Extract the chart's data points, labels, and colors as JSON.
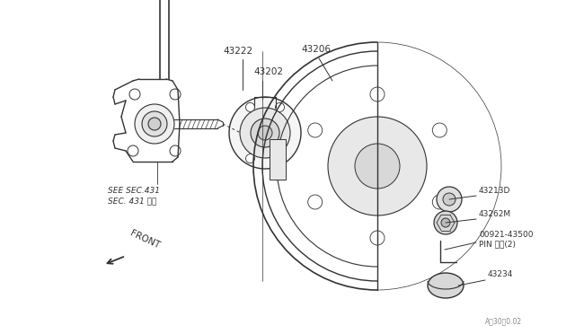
{
  "bg_color": "#ffffff",
  "line_color": "#333333",
  "text_color": "#333333",
  "watermark": "A・30・0.02",
  "see_sec_text1": "SEE SEC.431",
  "see_sec_text2": "SEC. 431 参図",
  "front_text": "FRONT",
  "pin_text": "PIN ピン(2)",
  "label_fontsize": 7.5,
  "small_fontsize": 6.5
}
